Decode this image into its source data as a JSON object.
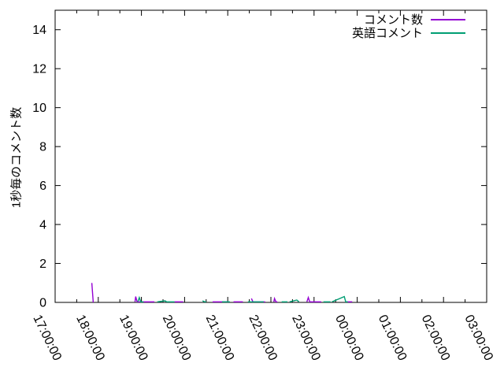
{
  "chart_data": {
    "type": "line",
    "title": "",
    "xlabel": "",
    "ylabel": "1秒毎のコメント数",
    "ylim": [
      0,
      15
    ],
    "ytick_values": [
      0,
      2,
      4,
      6,
      8,
      10,
      12,
      14
    ],
    "x_range_hours": [
      17,
      27
    ],
    "xtick_labels": [
      "17:00:00",
      "18:00:00",
      "19:00:00",
      "20:00:00",
      "21:00:00",
      "22:00:00",
      "23:00:00",
      "00:00:00",
      "01:00:00",
      "02:00:00",
      "03:00:00"
    ],
    "minor_xtick_interval_minutes": 30,
    "grid": false,
    "legend_position": "top-right-inside",
    "background_color": "#ffffff",
    "axis_color": "#000000",
    "series": [
      {
        "name": "コメント数",
        "color": "#9400d3",
        "segments": [
          [
            [
              "17:51",
              1.0
            ],
            [
              "17:53",
              0.0
            ]
          ],
          [
            [
              "18:51",
              0.03
            ],
            [
              "18:52",
              0.3
            ],
            [
              "18:54",
              0.03
            ],
            [
              "19:18",
              0.03
            ]
          ],
          [
            [
              "19:46",
              0.03
            ],
            [
              "19:58",
              0.03
            ]
          ],
          [
            [
              "20:39",
              0.03
            ],
            [
              "21:01",
              0.03
            ]
          ],
          [
            [
              "21:08",
              0.03
            ],
            [
              "21:21",
              0.03
            ]
          ],
          [
            [
              "21:33",
              0.2
            ],
            [
              "21:35",
              0.03
            ],
            [
              "21:52",
              0.03
            ]
          ],
          [
            [
              "22:04",
              0.03
            ],
            [
              "22:05",
              0.2
            ],
            [
              "22:07",
              0.03
            ],
            [
              "22:09",
              0.03
            ]
          ],
          [
            [
              "22:50",
              0.03
            ],
            [
              "22:52",
              0.25
            ],
            [
              "22:54",
              0.03
            ],
            [
              "23:10",
              0.03
            ]
          ],
          [
            [
              "23:45",
              0.03
            ],
            [
              "23:53",
              0.03
            ]
          ]
        ]
      },
      {
        "name": "英語コメント",
        "color": "#009e73",
        "segments": [
          [
            [
              "18:55",
              0.03
            ],
            [
              "18:57",
              0.25
            ],
            [
              "18:59",
              0.03
            ],
            [
              "19:03",
              0.03
            ]
          ],
          [
            [
              "19:22",
              0.03
            ],
            [
              "19:33",
              0.08
            ],
            [
              "19:35",
              0.03
            ],
            [
              "19:46",
              0.03
            ]
          ],
          [
            [
              "20:25",
              0.08
            ],
            [
              "20:28",
              0.03
            ],
            [
              "20:30",
              0.03
            ]
          ],
          [
            [
              "20:52",
              0.03
            ],
            [
              "21:03",
              0.03
            ]
          ],
          [
            [
              "21:28",
              0.03
            ],
            [
              "21:50",
              0.03
            ]
          ],
          [
            [
              "22:15",
              0.03
            ],
            [
              "22:23",
              0.03
            ]
          ],
          [
            [
              "22:26",
              0.03
            ],
            [
              "22:36",
              0.12
            ],
            [
              "22:39",
              0.03
            ]
          ],
          [
            [
              "23:13",
              0.03
            ],
            [
              "23:23",
              0.03
            ]
          ],
          [
            [
              "23:25",
              0.03
            ],
            [
              "23:42",
              0.3
            ],
            [
              "23:44",
              0.03
            ],
            [
              "23:47",
              0.03
            ]
          ]
        ]
      }
    ]
  }
}
